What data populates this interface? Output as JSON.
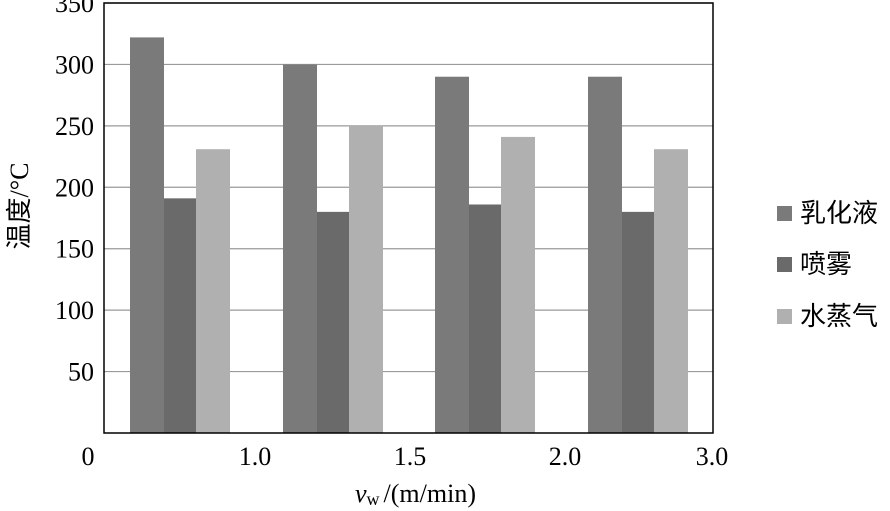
{
  "chart_data": {
    "type": "bar",
    "categories": [
      "1.0",
      "1.5",
      "2.0",
      "3.0"
    ],
    "x_tick_labels": [
      "0",
      "1.0",
      "1.5",
      "2.0",
      "3.0"
    ],
    "series": [
      {
        "name": "乳化液",
        "values": [
          322,
          300,
          290,
          290
        ],
        "color": "#7a7a7a"
      },
      {
        "name": "喷雾",
        "values": [
          191,
          180,
          186,
          180
        ],
        "color": "#6a6a6a"
      },
      {
        "name": "水蒸气",
        "values": [
          231,
          250,
          241,
          231
        ],
        "color": "#b0b0b0"
      }
    ],
    "ylabel": "温度/°C",
    "xlabel_var": "v",
    "xlabel_sub": "w",
    "xlabel_unit": "/(m/min)",
    "ylim": [
      0,
      350
    ],
    "yticks": [
      "50",
      "100",
      "150",
      "200",
      "250",
      "300",
      "350"
    ],
    "grid": true,
    "legend_position": "right"
  }
}
